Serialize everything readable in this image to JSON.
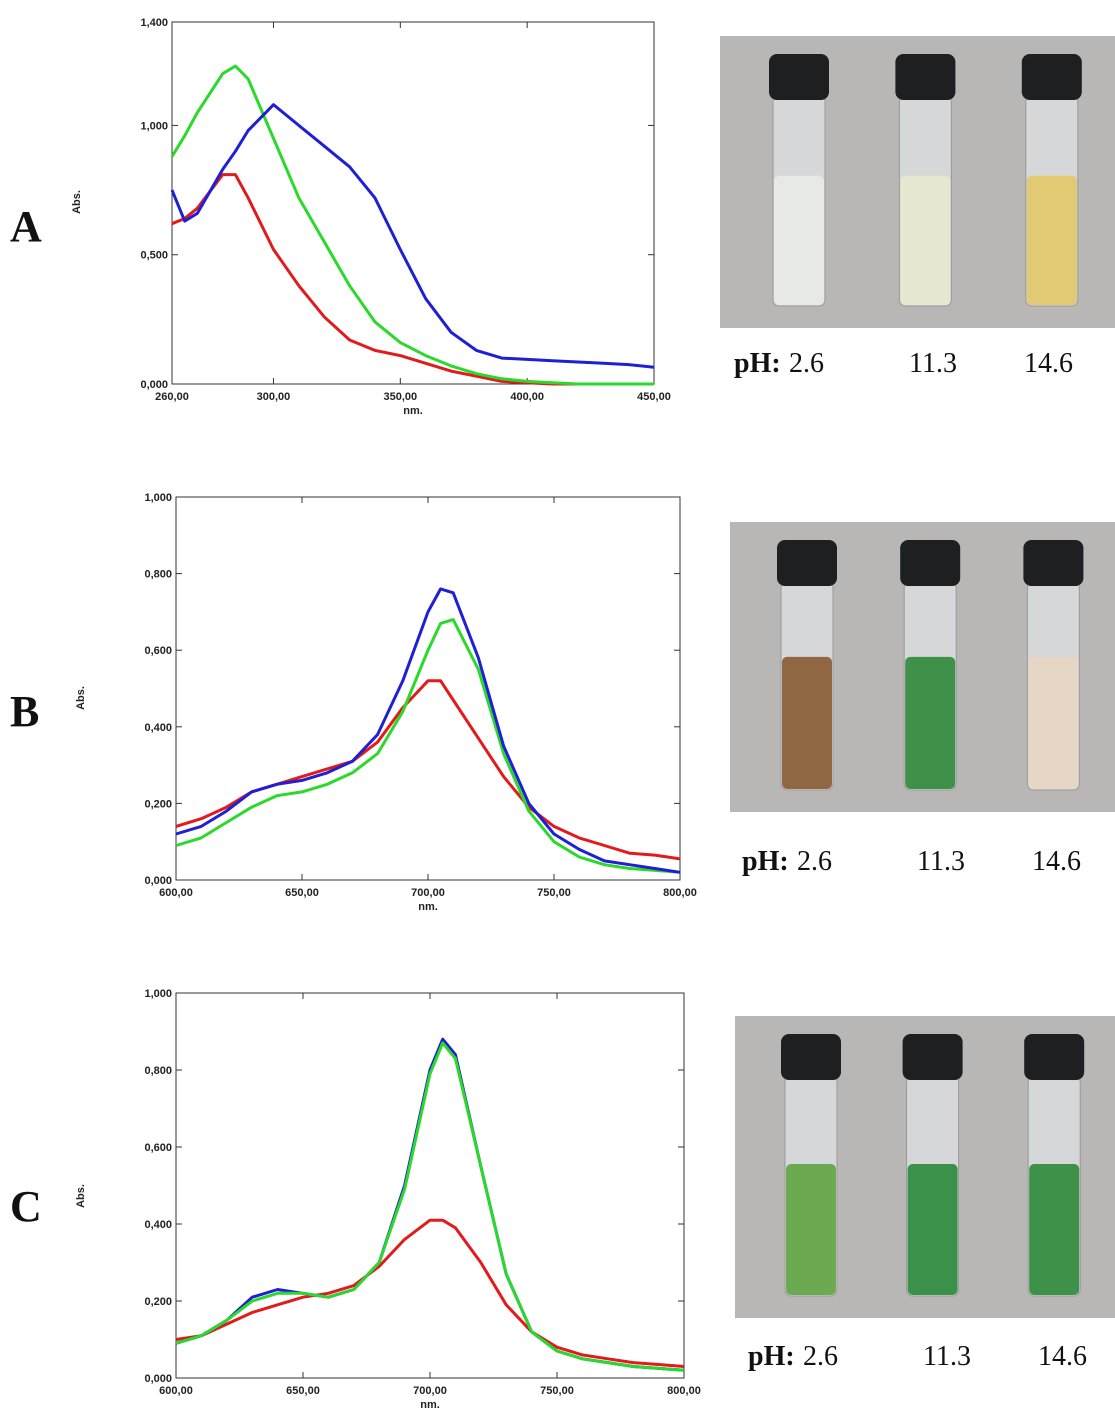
{
  "chart_data": [
    {
      "type": "line",
      "xlabel": "nm.",
      "ylabel": "Abs.",
      "x": [
        260,
        265,
        270,
        280,
        285,
        290,
        300,
        310,
        320,
        330,
        340,
        350,
        360,
        370,
        380,
        390,
        400,
        410,
        420,
        430,
        440,
        450
      ],
      "xlim": [
        260,
        450
      ],
      "xticks": [
        {
          "value": 260,
          "label": "260,00"
        },
        {
          "value": 300,
          "label": "300,00"
        },
        {
          "value": 350,
          "label": "350,00"
        },
        {
          "value": 400,
          "label": "400,00"
        },
        {
          "value": 450,
          "label": "450,00"
        }
      ],
      "ylim": [
        0,
        1.4
      ],
      "yticks": [
        {
          "value": 0,
          "label": "0,000"
        },
        {
          "value": 0.5,
          "label": "0,500"
        },
        {
          "value": 1,
          "label": "1,000"
        },
        {
          "value": 1.4,
          "label": "1,400"
        }
      ],
      "series": [
        {
          "color": "#e31a1c",
          "values": [
            0.62,
            0.64,
            0.68,
            0.81,
            0.81,
            0.72,
            0.52,
            0.38,
            0.26,
            0.17,
            0.13,
            0.11,
            0.08,
            0.05,
            0.03,
            0.01,
            0.005,
            0,
            0,
            0,
            0,
            0
          ]
        },
        {
          "color": "#2bd92b",
          "values": [
            0.88,
            0.96,
            1.05,
            1.2,
            1.23,
            1.18,
            0.95,
            0.72,
            0.55,
            0.38,
            0.24,
            0.16,
            0.11,
            0.07,
            0.04,
            0.02,
            0.01,
            0.005,
            0,
            0,
            0,
            0
          ]
        },
        {
          "color": "#1f1fd6",
          "values": [
            0.75,
            0.63,
            0.66,
            0.83,
            0.9,
            0.98,
            1.08,
            1.0,
            0.92,
            0.84,
            0.72,
            0.52,
            0.33,
            0.2,
            0.13,
            0.1,
            0.095,
            0.09,
            0.085,
            0.08,
            0.075,
            0.065
          ]
        }
      ]
    },
    {
      "type": "line",
      "xlabel": "nm.",
      "ylabel": "Abs.",
      "x": [
        600,
        610,
        620,
        630,
        640,
        650,
        660,
        670,
        680,
        690,
        700,
        705,
        710,
        720,
        730,
        740,
        750,
        760,
        770,
        780,
        790,
        800
      ],
      "xlim": [
        600,
        800
      ],
      "xticks": [
        {
          "value": 600,
          "label": "600,00"
        },
        {
          "value": 650,
          "label": "650,00"
        },
        {
          "value": 700,
          "label": "700,00"
        },
        {
          "value": 750,
          "label": "750,00"
        },
        {
          "value": 800,
          "label": "800,00"
        }
      ],
      "ylim": [
        0,
        1
      ],
      "yticks": [
        {
          "value": 0,
          "label": "0,000"
        },
        {
          "value": 0.2,
          "label": "0,200"
        },
        {
          "value": 0.4,
          "label": "0,400"
        },
        {
          "value": 0.6,
          "label": "0,600"
        },
        {
          "value": 0.8,
          "label": "0,800"
        },
        {
          "value": 1,
          "label": "1,000"
        }
      ],
      "series": [
        {
          "color": "#e31a1c",
          "values": [
            0.14,
            0.16,
            0.19,
            0.23,
            0.25,
            0.27,
            0.29,
            0.31,
            0.36,
            0.45,
            0.52,
            0.52,
            0.47,
            0.37,
            0.27,
            0.19,
            0.14,
            0.11,
            0.09,
            0.07,
            0.065,
            0.055
          ]
        },
        {
          "color": "#2bd92b",
          "values": [
            0.09,
            0.11,
            0.15,
            0.19,
            0.22,
            0.23,
            0.25,
            0.28,
            0.33,
            0.44,
            0.6,
            0.67,
            0.68,
            0.55,
            0.33,
            0.18,
            0.1,
            0.06,
            0.04,
            0.03,
            0.025,
            0.02
          ]
        },
        {
          "color": "#1f1fd6",
          "values": [
            0.12,
            0.14,
            0.18,
            0.23,
            0.25,
            0.26,
            0.28,
            0.31,
            0.38,
            0.52,
            0.7,
            0.76,
            0.75,
            0.58,
            0.35,
            0.2,
            0.12,
            0.08,
            0.05,
            0.04,
            0.03,
            0.02
          ]
        }
      ]
    },
    {
      "type": "line",
      "xlabel": "nm.",
      "ylabel": "Abs.",
      "x": [
        600,
        610,
        620,
        630,
        640,
        650,
        660,
        670,
        680,
        690,
        700,
        705,
        710,
        720,
        730,
        740,
        750,
        760,
        770,
        780,
        790,
        800
      ],
      "xlim": [
        600,
        800
      ],
      "xticks": [
        {
          "value": 600,
          "label": "600,00"
        },
        {
          "value": 650,
          "label": "650,00"
        },
        {
          "value": 700,
          "label": "700,00"
        },
        {
          "value": 750,
          "label": "750,00"
        },
        {
          "value": 800,
          "label": "800,00"
        }
      ],
      "ylim": [
        0,
        1
      ],
      "yticks": [
        {
          "value": 0,
          "label": "0,000"
        },
        {
          "value": 0.2,
          "label": "0,200"
        },
        {
          "value": 0.4,
          "label": "0,400"
        },
        {
          "value": 0.6,
          "label": "0,600"
        },
        {
          "value": 0.8,
          "label": "0,800"
        },
        {
          "value": 1,
          "label": "1,000"
        }
      ],
      "series": [
        {
          "color": "#e31a1c",
          "values": [
            0.1,
            0.11,
            0.14,
            0.17,
            0.19,
            0.21,
            0.22,
            0.24,
            0.29,
            0.36,
            0.41,
            0.41,
            0.39,
            0.3,
            0.19,
            0.12,
            0.08,
            0.06,
            0.05,
            0.04,
            0.035,
            0.03
          ]
        },
        {
          "color": "#1f1fd6",
          "values": [
            0.09,
            0.11,
            0.15,
            0.21,
            0.23,
            0.22,
            0.21,
            0.23,
            0.3,
            0.5,
            0.8,
            0.88,
            0.84,
            0.55,
            0.27,
            0.12,
            0.07,
            0.05,
            0.04,
            0.03,
            0.025,
            0.02
          ]
        },
        {
          "color": "#2bd92b",
          "values": [
            0.09,
            0.11,
            0.15,
            0.2,
            0.22,
            0.22,
            0.21,
            0.23,
            0.3,
            0.49,
            0.79,
            0.87,
            0.83,
            0.55,
            0.27,
            0.12,
            0.07,
            0.05,
            0.04,
            0.03,
            0.025,
            0.02
          ]
        }
      ]
    }
  ],
  "panels": [
    {
      "letter": "A",
      "ph_label": "pH:",
      "ph_values": [
        "2.6",
        "11.3",
        "14.6"
      ]
    },
    {
      "letter": "B",
      "ph_label": "pH:",
      "ph_values": [
        "2.6",
        "11.3",
        "14.6"
      ]
    },
    {
      "letter": "C",
      "ph_label": "pH:",
      "ph_values": [
        "2.6",
        "11.3",
        "14.6"
      ]
    }
  ]
}
